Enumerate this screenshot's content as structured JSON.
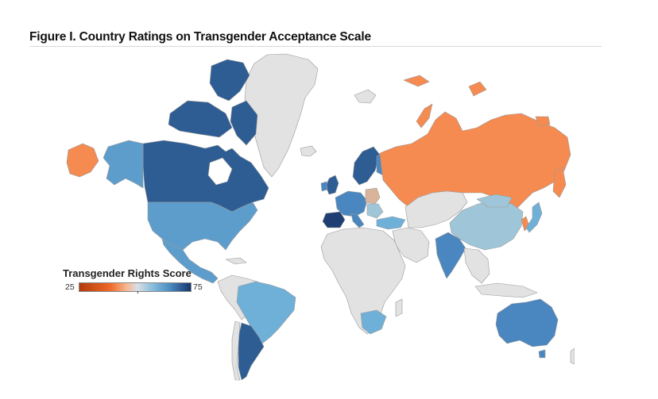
{
  "figure": {
    "title": "Figure I. Country Ratings on Transgender Acceptance Scale"
  },
  "legend": {
    "title": "Transgender Rights Score",
    "min": "25",
    "max": "75"
  },
  "colors": {
    "no_data": "#e2e2e2",
    "low_orange": "#f58b50",
    "light_orange": "#d9b49a",
    "pale_blue": "#9fc6d8",
    "mid_blue": "#5d9dcc",
    "blue": "#4a86bf",
    "dark_blue": "#2e5d93",
    "navy": "#1f3f73",
    "land_stroke": "#9a9a9a"
  },
  "map_data": {
    "type": "choropleth",
    "metric": "Transgender Rights Score",
    "scale": [
      25,
      75
    ],
    "regions": [
      {
        "name": "Canada",
        "band": "dark"
      },
      {
        "name": "United States",
        "band": "medium-blue"
      },
      {
        "name": "Alaska",
        "band": "medium-blue"
      },
      {
        "name": "Mexico",
        "band": "medium-blue"
      },
      {
        "name": "Brazil",
        "band": "light-blue"
      },
      {
        "name": "Argentina",
        "band": "dark"
      },
      {
        "name": "Russia",
        "band": "orange"
      },
      {
        "name": "China",
        "band": "pale-blue"
      },
      {
        "name": "India",
        "band": "medium-blue"
      },
      {
        "name": "Australia",
        "band": "medium-blue"
      },
      {
        "name": "Turkey",
        "band": "light-blue"
      },
      {
        "name": "South Africa",
        "band": "light-blue"
      },
      {
        "name": "Japan",
        "band": "light-blue"
      },
      {
        "name": "Spain",
        "band": "dark"
      },
      {
        "name": "Sweden",
        "band": "dark"
      },
      {
        "name": "United Kingdom",
        "band": "dark"
      },
      {
        "name": "Poland",
        "band": "light-orange"
      },
      {
        "name": "Greenland",
        "band": "no-data"
      }
    ]
  }
}
